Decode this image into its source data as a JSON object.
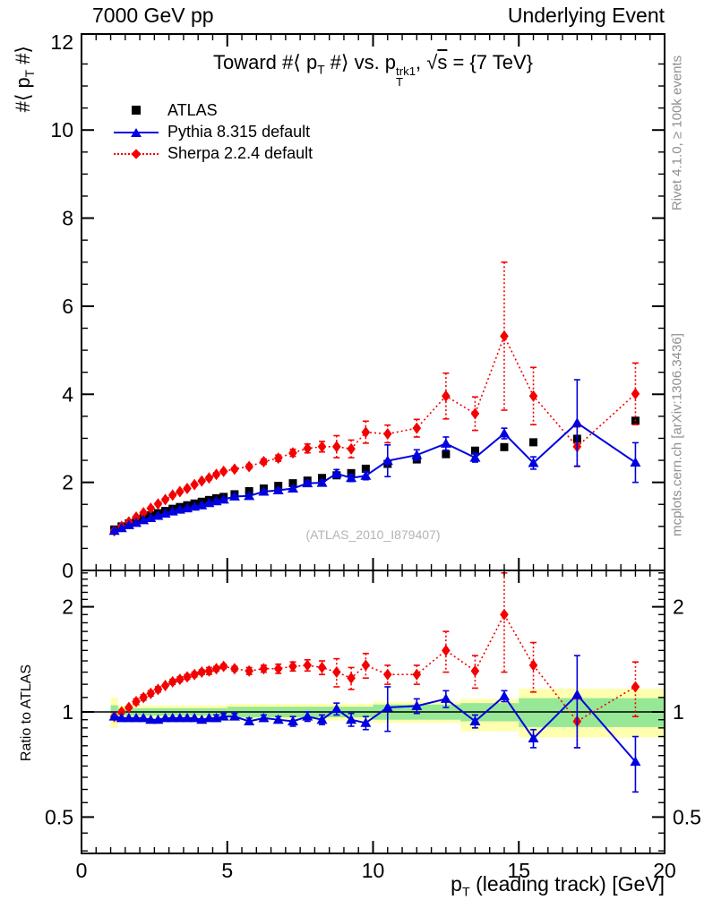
{
  "header": {
    "left": "7000 GeV pp",
    "right": "Underlying Event"
  },
  "title": {
    "p1": "Toward #⟨ p",
    "sub1": "T",
    "p2": " #⟩ vs. p",
    "sup2": "trk1",
    "sub2": "T",
    "p3": ", ",
    "sqrt": "√",
    "sqrt_arg": "s",
    "p4": " = {7 TeV}"
  },
  "axes": {
    "y_main_title": {
      "pre": "#⟨ p",
      "sub": "T",
      "post": " #⟩"
    },
    "ratio_title": "Ratio to ATLAS",
    "x_title": {
      "pre": "p",
      "sub": "T",
      "post": " (leading track) [GeV]"
    }
  },
  "watermark": "(ATLAS_2010_I879407)",
  "side_notes": {
    "rivet": "Rivet 4.1.0, ≥ 100k events",
    "mcplots": "mcplots.cern.ch [arXiv:1306.3436]"
  },
  "colors": {
    "atlas": "#000000",
    "pythia": "#0000e0",
    "sherpa": "#f50000",
    "band_outer": "#feffaf",
    "band_inner": "#96e896",
    "watermark": "#b4b4b4",
    "side_note": "#8f8f8f",
    "frame": "#000000"
  },
  "chart_data": {
    "type": "line",
    "title": "Toward #<pT#> vs. pT trk1, sqrt(s) = {7 TeV}",
    "xlabel": "pT (leading track) [GeV]",
    "ylabel": "#<pT#>",
    "ratio_ylabel": "Ratio to ATLAS",
    "xlim": [
      0,
      20
    ],
    "ylim_main": [
      0,
      12.18
    ],
    "ylim_ratio": [
      0.394,
      2.54
    ],
    "ratio_scale": "log",
    "grid": false,
    "legend_position": "top-left",
    "x": [
      1.125,
      1.375,
      1.625,
      1.875,
      2.125,
      2.375,
      2.625,
      2.875,
      3.125,
      3.375,
      3.625,
      3.875,
      4.125,
      4.375,
      4.625,
      4.875,
      5.25,
      5.75,
      6.25,
      6.75,
      7.25,
      7.75,
      8.25,
      8.75,
      9.25,
      9.75,
      10.5,
      11.5,
      12.5,
      13.5,
      14.5,
      15.5,
      17,
      19
    ],
    "series": [
      {
        "name": "ATLAS",
        "key": "atlas",
        "marker": "square",
        "line": null,
        "color_key": "atlas",
        "values": [
          0.93,
          1.0,
          1.07,
          1.13,
          1.19,
          1.25,
          1.3,
          1.35,
          1.4,
          1.44,
          1.48,
          1.52,
          1.56,
          1.6,
          1.64,
          1.67,
          1.73,
          1.8,
          1.86,
          1.92,
          1.98,
          2.04,
          2.1,
          2.16,
          2.21,
          2.31,
          2.42,
          2.52,
          2.64,
          2.72,
          2.8,
          2.91,
          2.99,
          3.4
        ],
        "errors": null,
        "ratio": null,
        "ratio_errors": null
      },
      {
        "name": "Pythia 8.315 default",
        "key": "pythia",
        "marker": "triangle",
        "line": "solid",
        "color_key": "pythia",
        "values": [
          0.9,
          0.96,
          1.03,
          1.08,
          1.14,
          1.19,
          1.24,
          1.29,
          1.34,
          1.38,
          1.41,
          1.45,
          1.48,
          1.53,
          1.57,
          1.61,
          1.68,
          1.69,
          1.79,
          1.82,
          1.86,
          1.98,
          1.99,
          2.2,
          2.1,
          2.15,
          2.49,
          2.62,
          2.88,
          2.56,
          3.11,
          2.44,
          3.35,
          2.45
        ],
        "errors": [
          0.01,
          0.01,
          0.01,
          0.01,
          0.01,
          0.01,
          0.01,
          0.01,
          0.02,
          0.02,
          0.02,
          0.02,
          0.02,
          0.02,
          0.03,
          0.03,
          0.03,
          0.03,
          0.04,
          0.04,
          0.05,
          0.06,
          0.06,
          0.09,
          0.08,
          0.09,
          0.36,
          0.12,
          0.15,
          0.1,
          0.12,
          0.14,
          0.98,
          0.45
        ],
        "ratio": [
          0.97,
          0.96,
          0.96,
          0.96,
          0.96,
          0.95,
          0.95,
          0.96,
          0.96,
          0.96,
          0.96,
          0.96,
          0.95,
          0.96,
          0.96,
          0.97,
          0.97,
          0.94,
          0.96,
          0.95,
          0.94,
          0.97,
          0.95,
          1.02,
          0.95,
          0.93,
          1.03,
          1.04,
          1.09,
          0.94,
          1.11,
          0.84,
          1.12,
          0.72
        ],
        "ratio_errors": [
          0.01,
          0.01,
          0.01,
          0.01,
          0.01,
          0.01,
          0.01,
          0.01,
          0.01,
          0.01,
          0.01,
          0.01,
          0.01,
          0.01,
          0.02,
          0.02,
          0.02,
          0.02,
          0.02,
          0.02,
          0.03,
          0.03,
          0.03,
          0.04,
          0.04,
          0.04,
          0.15,
          0.05,
          0.06,
          0.04,
          0.04,
          0.05,
          0.33,
          0.13
        ]
      },
      {
        "name": "Sherpa 2.2.4 default",
        "key": "sherpa",
        "marker": "diamond",
        "line": "dotted",
        "color_key": "sherpa",
        "values": [
          0.9,
          1.0,
          1.1,
          1.21,
          1.31,
          1.41,
          1.51,
          1.61,
          1.71,
          1.79,
          1.86,
          1.95,
          2.03,
          2.1,
          2.18,
          2.25,
          2.3,
          2.36,
          2.47,
          2.55,
          2.67,
          2.77,
          2.81,
          2.81,
          2.76,
          3.14,
          3.1,
          3.23,
          3.96,
          3.56,
          5.32,
          3.96,
          2.81,
          4.01
        ],
        "errors": [
          0.01,
          0.01,
          0.01,
          0.02,
          0.02,
          0.02,
          0.02,
          0.02,
          0.03,
          0.03,
          0.03,
          0.03,
          0.03,
          0.04,
          0.04,
          0.04,
          0.04,
          0.05,
          0.06,
          0.07,
          0.08,
          0.1,
          0.12,
          0.25,
          0.2,
          0.25,
          0.2,
          0.2,
          0.52,
          0.38,
          1.68,
          0.65,
          0.45,
          0.7
        ],
        "ratio": [
          0.97,
          1.0,
          1.03,
          1.07,
          1.1,
          1.13,
          1.16,
          1.19,
          1.22,
          1.24,
          1.26,
          1.28,
          1.3,
          1.31,
          1.33,
          1.35,
          1.33,
          1.31,
          1.33,
          1.33,
          1.35,
          1.36,
          1.34,
          1.3,
          1.25,
          1.36,
          1.28,
          1.28,
          1.5,
          1.31,
          1.9,
          1.36,
          0.94,
          1.18
        ],
        "ratio_errors": [
          0.01,
          0.01,
          0.01,
          0.02,
          0.02,
          0.02,
          0.02,
          0.01,
          0.02,
          0.02,
          0.02,
          0.02,
          0.02,
          0.03,
          0.02,
          0.02,
          0.02,
          0.03,
          0.03,
          0.04,
          0.04,
          0.05,
          0.06,
          0.12,
          0.09,
          0.11,
          0.08,
          0.08,
          0.2,
          0.14,
          0.6,
          0.22,
          0.15,
          0.21
        ]
      }
    ],
    "ratio_bands": [
      {
        "x0": 1.0,
        "x1": 1.25,
        "outer": [
          0.9,
          1.1
        ],
        "inner": [
          0.955,
          1.045
        ]
      },
      {
        "x0": 1.25,
        "x1": 5.0,
        "outer": [
          0.955,
          1.045
        ],
        "inner": [
          0.975,
          1.025
        ]
      },
      {
        "x0": 5.0,
        "x1": 10.0,
        "outer": [
          0.945,
          1.055
        ],
        "inner": [
          0.965,
          1.035
        ]
      },
      {
        "x0": 10.0,
        "x1": 13.0,
        "outer": [
          0.93,
          1.07
        ],
        "inner": [
          0.95,
          1.05
        ]
      },
      {
        "x0": 13.0,
        "x1": 15.0,
        "outer": [
          0.88,
          1.09
        ],
        "inner": [
          0.94,
          1.06
        ]
      },
      {
        "x0": 15.0,
        "x1": 20.0,
        "outer": [
          0.845,
          1.165
        ],
        "inner": [
          0.905,
          1.095
        ]
      }
    ],
    "axis_ticks": {
      "x_major": [
        0,
        5,
        10,
        15,
        20
      ],
      "x_labels": [
        "0",
        "5",
        "10",
        "15",
        "20"
      ],
      "x_minor_step": 0.5,
      "y_main_major": [
        0,
        2,
        4,
        6,
        8,
        10,
        12
      ],
      "y_main_labels": [
        "0",
        "2",
        "4",
        "6",
        "8",
        "10",
        "12"
      ],
      "y_main_minor_step": 0.5,
      "y_ratio_major": [
        0.5,
        1,
        2
      ],
      "y_ratio_labels": [
        "0.5",
        "1",
        "2"
      ],
      "y_ratio_minor": [
        0.4,
        0.45,
        0.55,
        0.6,
        0.65,
        0.7,
        0.75,
        0.8,
        0.85,
        0.9,
        0.95,
        1.1,
        1.2,
        1.3,
        1.4,
        1.5,
        1.6,
        1.7,
        1.8,
        1.9,
        2.1,
        2.2,
        2.3,
        2.4,
        2.5
      ]
    }
  }
}
